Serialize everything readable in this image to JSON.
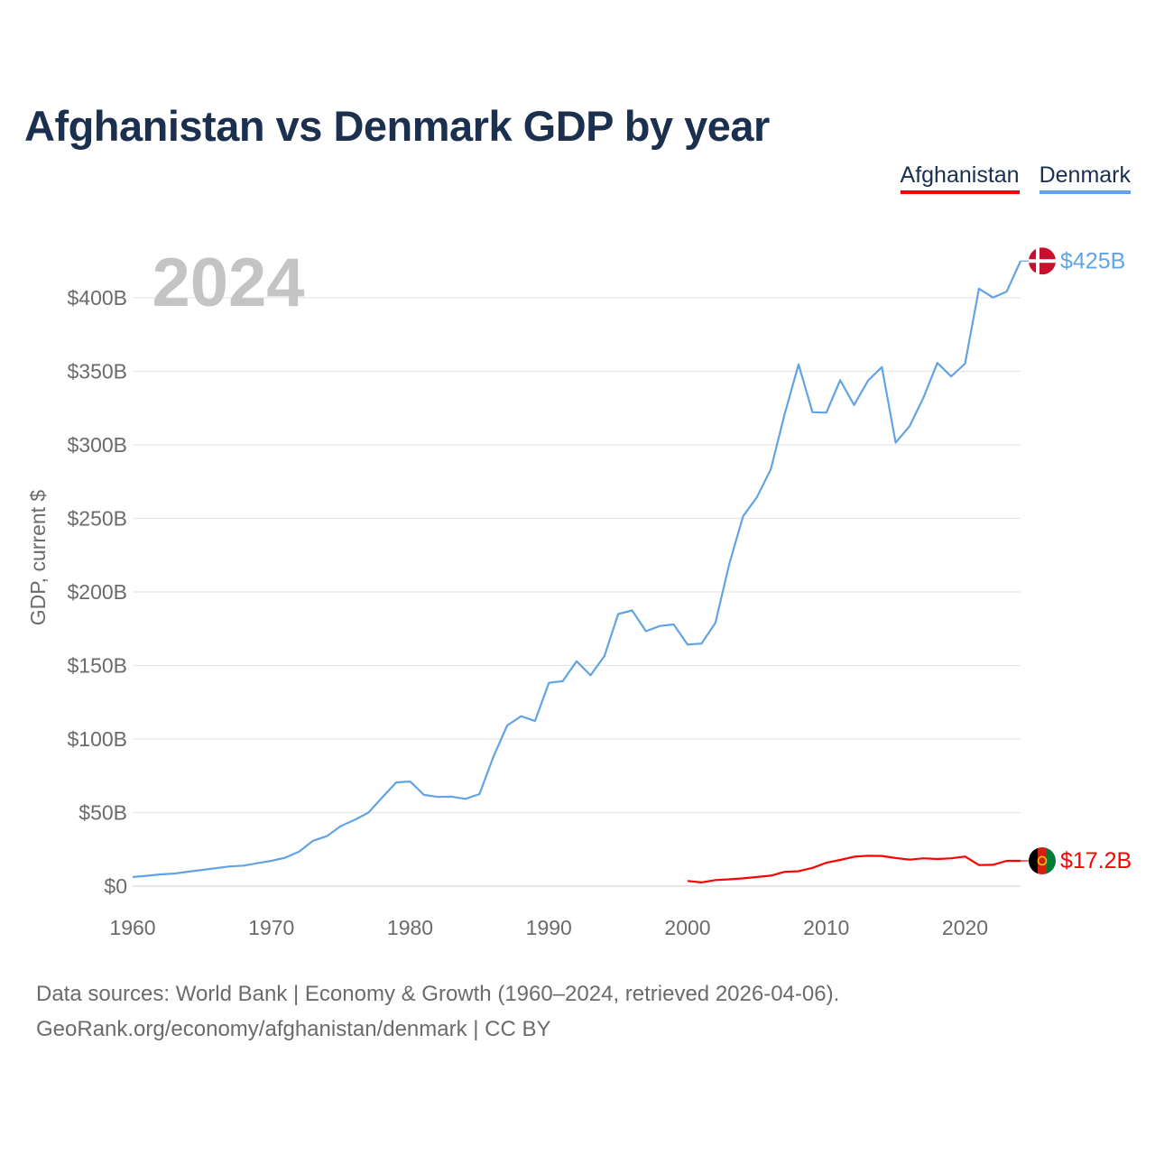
{
  "title": "Afghanistan vs Denmark GDP by year",
  "legend": [
    {
      "label": "Afghanistan",
      "color": "#ff0000"
    },
    {
      "label": "Denmark",
      "color": "#62a4e3"
    }
  ],
  "footer": {
    "line1": "Data sources: World Bank | Economy & Growth (1960–2024, retrieved 2026-04-06).",
    "line2": "GeoRank.org/economy/afghanistan/denmark | CC BY"
  },
  "chart_data": {
    "type": "line",
    "title": "Afghanistan vs Denmark GDP by year",
    "year_label": "2024",
    "xlabel": "",
    "ylabel": "GDP, current $",
    "xlim": [
      1960,
      2024
    ],
    "ylim": [
      0,
      425
    ],
    "y_unit": "billion current US$",
    "x_ticks": [
      {
        "value": 1960,
        "label": "1960"
      },
      {
        "value": 1970,
        "label": "1970"
      },
      {
        "value": 1980,
        "label": "1980"
      },
      {
        "value": 1990,
        "label": "1990"
      },
      {
        "value": 2000,
        "label": "2000"
      },
      {
        "value": 2010,
        "label": "2010"
      },
      {
        "value": 2020,
        "label": "2020"
      }
    ],
    "y_ticks": [
      {
        "value": 0,
        "label": "$0"
      },
      {
        "value": 50,
        "label": "$50B"
      },
      {
        "value": 100,
        "label": "$100B"
      },
      {
        "value": 150,
        "label": "$150B"
      },
      {
        "value": 200,
        "label": "$200B"
      },
      {
        "value": 250,
        "label": "$250B"
      },
      {
        "value": 300,
        "label": "$300B"
      },
      {
        "value": 350,
        "label": "$350B"
      },
      {
        "value": 400,
        "label": "$400B"
      }
    ],
    "series": [
      {
        "name": "Denmark",
        "color": "#62a4e3",
        "end_label": "$425B",
        "flag": "denmark",
        "x": [
          1960,
          1961,
          1962,
          1963,
          1964,
          1965,
          1966,
          1967,
          1968,
          1969,
          1970,
          1971,
          1972,
          1973,
          1974,
          1975,
          1976,
          1977,
          1978,
          1979,
          1980,
          1981,
          1982,
          1983,
          1984,
          1985,
          1986,
          1987,
          1988,
          1989,
          1990,
          1991,
          1992,
          1993,
          1994,
          1995,
          1996,
          1997,
          1998,
          1999,
          2000,
          2001,
          2002,
          2003,
          2004,
          2005,
          2006,
          2007,
          2008,
          2009,
          2010,
          2011,
          2012,
          2013,
          2014,
          2015,
          2016,
          2017,
          2018,
          2019,
          2020,
          2021,
          2022,
          2023,
          2024
        ],
        "y": [
          6.2,
          7.0,
          8.0,
          8.5,
          9.8,
          11.0,
          12.2,
          13.4,
          13.9,
          15.6,
          17.2,
          19.3,
          23.5,
          30.8,
          34.0,
          40.8,
          45.0,
          50.0,
          60.4,
          70.5,
          71.1,
          62.0,
          60.6,
          60.8,
          59.3,
          62.6,
          88.0,
          109.2,
          115.5,
          112.2,
          138.2,
          139.3,
          152.9,
          143.3,
          156.3,
          185.0,
          187.4,
          173.3,
          176.9,
          177.9,
          164.2,
          164.9,
          178.9,
          218.8,
          251.4,
          264.5,
          283.5,
          321.0,
          354.7,
          322.2,
          321.9,
          344.0,
          327.1,
          343.6,
          352.9,
          301.5,
          312.7,
          332.1,
          355.7,
          346.5,
          355.2,
          406.2,
          400.2,
          404.2,
          425.0
        ]
      },
      {
        "name": "Afghanistan",
        "color": "#ff0000",
        "end_label": "$17.2B",
        "flag": "afghanistan",
        "x": [
          2000,
          2001,
          2002,
          2003,
          2004,
          2005,
          2006,
          2007,
          2008,
          2009,
          2010,
          2011,
          2012,
          2013,
          2014,
          2015,
          2016,
          2017,
          2018,
          2019,
          2020,
          2021,
          2022,
          2023,
          2024
        ],
        "y": [
          3.5,
          2.5,
          4.1,
          4.6,
          5.3,
          6.2,
          7.1,
          9.7,
          10.1,
          12.4,
          15.9,
          17.8,
          20.0,
          20.6,
          20.5,
          19.1,
          18.0,
          18.9,
          18.4,
          18.9,
          20.1,
          14.3,
          14.5,
          17.2,
          17.2
        ]
      }
    ]
  }
}
